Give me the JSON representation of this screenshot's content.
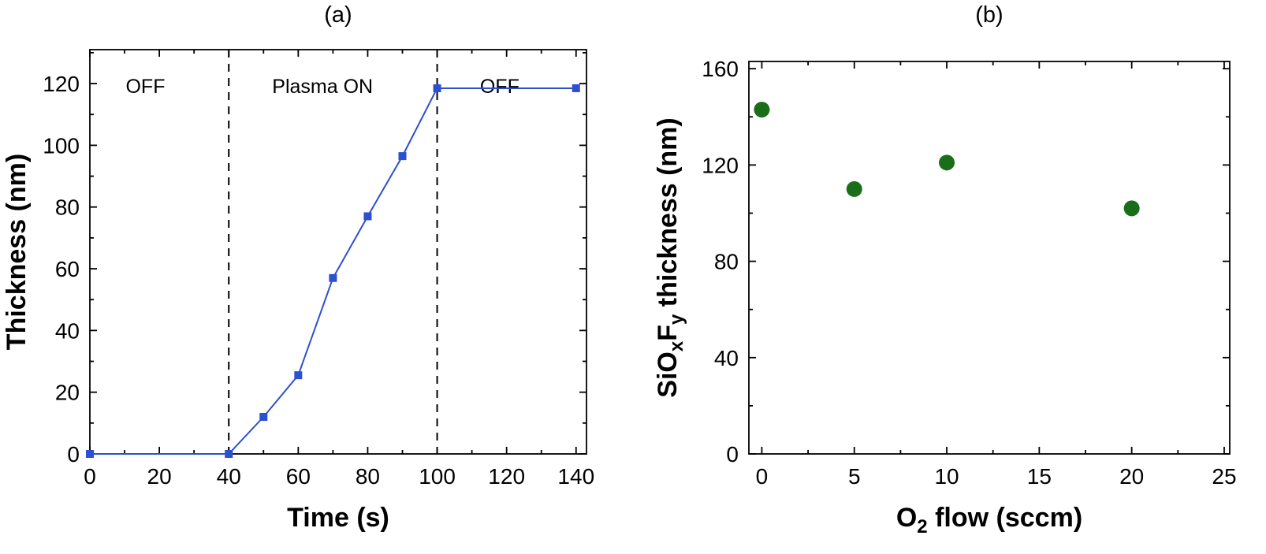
{
  "figure": {
    "background": "#ffffff",
    "panel_count": 2
  },
  "chart_data": [
    {
      "type": "line",
      "title": "(a)",
      "xlabel": "Time (s)",
      "ylabel": "Thickness (nm)",
      "x": [
        0,
        40,
        50,
        60,
        70,
        80,
        90,
        100,
        140
      ],
      "y": [
        0,
        0,
        12,
        25.5,
        57,
        77,
        96.5,
        118.5,
        118.5
      ],
      "xlim": [
        0,
        143
      ],
      "ylim": [
        0,
        131
      ],
      "xticks": [
        0,
        20,
        40,
        60,
        80,
        100,
        120,
        140
      ],
      "yticks": [
        0,
        20,
        40,
        60,
        80,
        100,
        120
      ],
      "xminor_step": 10,
      "yminor_step": 10,
      "grid": false,
      "legend": null,
      "marker": "square",
      "marker_size": 10,
      "line_color": "#2b50d0",
      "marker_color": "#2b50d0",
      "vlines": {
        "positions": [
          40,
          100
        ],
        "style": "dashed",
        "color": "#000000"
      },
      "annotations": [
        {
          "text": "OFF",
          "x": 16,
          "y": 117
        },
        {
          "text": "Plasma ON",
          "x": 67,
          "y": 117
        },
        {
          "text": "OFF",
          "x": 118,
          "y": 117
        }
      ]
    },
    {
      "type": "scatter",
      "title": "(b)",
      "xlabel": "O2 flow (sccm)",
      "xlabel_parts": [
        {
          "t": "O"
        },
        {
          "t": "2",
          "sub": true
        },
        {
          "t": " flow (sccm)"
        }
      ],
      "ylabel": "SiOxFy thickness (nm)",
      "ylabel_parts": [
        {
          "t": "SiO"
        },
        {
          "t": "x",
          "sub": true
        },
        {
          "t": "F"
        },
        {
          "t": "y",
          "sub": true
        },
        {
          "t": " thickness (nm)"
        }
      ],
      "x": [
        0,
        5,
        10,
        20
      ],
      "y": [
        143,
        110,
        121,
        102
      ],
      "xlim": [
        -0.7,
        25.3
      ],
      "ylim": [
        0,
        163
      ],
      "xticks": [
        0,
        5,
        10,
        15,
        20,
        25
      ],
      "yticks": [
        0,
        40,
        80,
        120,
        160
      ],
      "xminor_step": 2.5,
      "yminor_step": 20,
      "grid": false,
      "legend": null,
      "marker": "circle",
      "marker_size": 20,
      "marker_color": "#1a6e1a",
      "vlines": null,
      "annotations": []
    }
  ]
}
